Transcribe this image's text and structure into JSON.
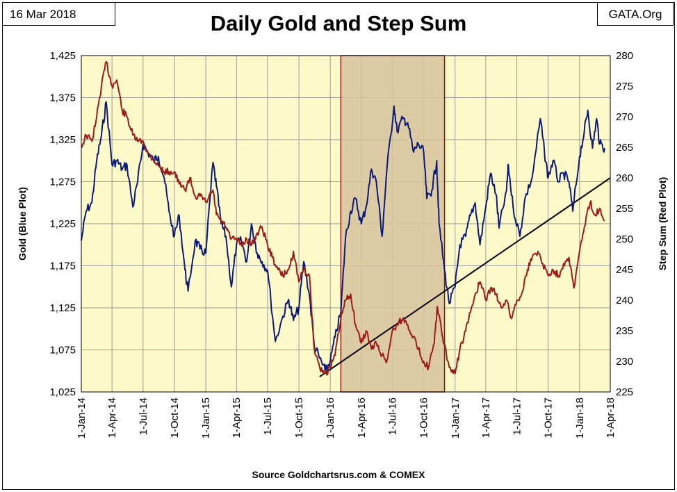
{
  "header": {
    "date": "16 Mar 2018",
    "site": "GATA.Org",
    "title": "Daily Gold and Step Sum"
  },
  "footer": {
    "source": "Source Goldchartsrus.com & COMEX"
  },
  "colors": {
    "plot_background": "#fdf9c8",
    "gold_series": "#0a1a7a",
    "step_sum_series": "#9b1a1a",
    "highlight_fill": "#d7c39c",
    "highlight_border": "#8b1a1a",
    "grid": "#9a9a9a",
    "trend_line": "#000000"
  },
  "chart_data": {
    "type": "line",
    "title": "Daily Gold and Step Sum",
    "xlabel": "",
    "ylabel_left": "Gold   (Blue Plot)",
    "ylabel_right": "Step Sum   (Red Plot)",
    "x_ticks": [
      "1-Jan-14",
      "1-Apr-14",
      "1-Jul-14",
      "1-Oct-14",
      "1-Jan-15",
      "1-Apr-15",
      "1-Jul-15",
      "1-Oct-15",
      "1-Jan-16",
      "1-Apr-16",
      "1-Jul-16",
      "1-Oct-16",
      "1-Jan-17",
      "1-Apr-17",
      "1-Jul-17",
      "1-Oct-17",
      "1-Jan-18",
      "1-Apr-18"
    ],
    "xlim": [
      "2014-01-01",
      "2018-04-01"
    ],
    "y_left_ticks": [
      "1,025",
      "1,075",
      "1,125",
      "1,175",
      "1,225",
      "1,275",
      "1,325",
      "1,375",
      "1,425"
    ],
    "y_left_range": [
      1025,
      1425
    ],
    "y_right_ticks": [
      "225",
      "230",
      "235",
      "240",
      "245",
      "250",
      "255",
      "260",
      "265",
      "270",
      "275",
      "280"
    ],
    "y_right_range": [
      225,
      280
    ],
    "grid": true,
    "shaded_region": {
      "start": "2016-02-01",
      "end": "2016-12-01"
    },
    "trend_line": {
      "start": {
        "x": "2015-12-01",
        "y_right": 227.5
      },
      "end": {
        "x": "2018-04-01",
        "y_right": 260
      }
    },
    "series": [
      {
        "name": "Gold",
        "axis": "left",
        "points": [
          [
            "2014-01-01",
            1205
          ],
          [
            "2014-01-15",
            1240
          ],
          [
            "2014-02-01",
            1250
          ],
          [
            "2014-02-15",
            1300
          ],
          [
            "2014-03-01",
            1330
          ],
          [
            "2014-03-15",
            1370
          ],
          [
            "2014-04-01",
            1295
          ],
          [
            "2014-04-15",
            1300
          ],
          [
            "2014-05-01",
            1290
          ],
          [
            "2014-05-15",
            1295
          ],
          [
            "2014-06-01",
            1245
          ],
          [
            "2014-06-15",
            1275
          ],
          [
            "2014-07-01",
            1320
          ],
          [
            "2014-07-15",
            1310
          ],
          [
            "2014-08-01",
            1300
          ],
          [
            "2014-08-15",
            1305
          ],
          [
            "2014-09-01",
            1280
          ],
          [
            "2014-09-15",
            1240
          ],
          [
            "2014-10-01",
            1210
          ],
          [
            "2014-10-15",
            1235
          ],
          [
            "2014-11-01",
            1170
          ],
          [
            "2014-11-10",
            1145
          ],
          [
            "2014-12-01",
            1205
          ],
          [
            "2014-12-15",
            1195
          ],
          [
            "2015-01-01",
            1190
          ],
          [
            "2015-01-22",
            1298
          ],
          [
            "2015-02-01",
            1270
          ],
          [
            "2015-02-15",
            1225
          ],
          [
            "2015-03-01",
            1210
          ],
          [
            "2015-03-17",
            1150
          ],
          [
            "2015-04-01",
            1200
          ],
          [
            "2015-04-15",
            1205
          ],
          [
            "2015-05-01",
            1180
          ],
          [
            "2015-05-15",
            1225
          ],
          [
            "2015-06-01",
            1190
          ],
          [
            "2015-06-15",
            1180
          ],
          [
            "2015-07-01",
            1170
          ],
          [
            "2015-07-24",
            1085
          ],
          [
            "2015-08-15",
            1115
          ],
          [
            "2015-09-01",
            1135
          ],
          [
            "2015-09-15",
            1110
          ],
          [
            "2015-10-01",
            1125
          ],
          [
            "2015-10-15",
            1180
          ],
          [
            "2015-11-01",
            1140
          ],
          [
            "2015-11-15",
            1080
          ],
          [
            "2015-12-01",
            1065
          ],
          [
            "2015-12-17",
            1050
          ],
          [
            "2016-01-01",
            1062
          ],
          [
            "2016-01-15",
            1090
          ],
          [
            "2016-02-01",
            1120
          ],
          [
            "2016-02-15",
            1210
          ],
          [
            "2016-03-01",
            1240
          ],
          [
            "2016-03-15",
            1255
          ],
          [
            "2016-04-01",
            1225
          ],
          [
            "2016-04-15",
            1245
          ],
          [
            "2016-05-01",
            1290
          ],
          [
            "2016-05-15",
            1275
          ],
          [
            "2016-06-01",
            1210
          ],
          [
            "2016-06-15",
            1290
          ],
          [
            "2016-07-06",
            1365
          ],
          [
            "2016-07-15",
            1335
          ],
          [
            "2016-08-01",
            1350
          ],
          [
            "2016-08-15",
            1345
          ],
          [
            "2016-09-01",
            1310
          ],
          [
            "2016-09-15",
            1320
          ],
          [
            "2016-10-01",
            1310
          ],
          [
            "2016-10-10",
            1255
          ],
          [
            "2016-10-25",
            1265
          ],
          [
            "2016-11-08",
            1300
          ],
          [
            "2016-11-15",
            1225
          ],
          [
            "2016-12-01",
            1170
          ],
          [
            "2016-12-15",
            1130
          ],
          [
            "2017-01-01",
            1150
          ],
          [
            "2017-01-15",
            1200
          ],
          [
            "2017-02-01",
            1210
          ],
          [
            "2017-02-15",
            1235
          ],
          [
            "2017-03-01",
            1250
          ],
          [
            "2017-03-15",
            1200
          ],
          [
            "2017-04-01",
            1245
          ],
          [
            "2017-04-15",
            1285
          ],
          [
            "2017-05-01",
            1260
          ],
          [
            "2017-05-10",
            1220
          ],
          [
            "2017-06-01",
            1265
          ],
          [
            "2017-06-06",
            1295
          ],
          [
            "2017-06-20",
            1245
          ],
          [
            "2017-07-10",
            1210
          ],
          [
            "2017-07-25",
            1255
          ],
          [
            "2017-08-15",
            1280
          ],
          [
            "2017-09-08",
            1350
          ],
          [
            "2017-09-20",
            1310
          ],
          [
            "2017-10-01",
            1280
          ],
          [
            "2017-10-15",
            1300
          ],
          [
            "2017-11-01",
            1275
          ],
          [
            "2017-11-15",
            1285
          ],
          [
            "2017-12-01",
            1275
          ],
          [
            "2017-12-12",
            1240
          ],
          [
            "2018-01-01",
            1305
          ],
          [
            "2018-01-15",
            1335
          ],
          [
            "2018-01-25",
            1360
          ],
          [
            "2018-02-08",
            1315
          ],
          [
            "2018-02-20",
            1350
          ],
          [
            "2018-03-01",
            1320
          ],
          [
            "2018-03-16",
            1315
          ]
        ]
      },
      {
        "name": "Step Sum",
        "axis": "right",
        "points": [
          [
            "2014-01-01",
            265
          ],
          [
            "2014-01-15",
            267
          ],
          [
            "2014-02-01",
            266
          ],
          [
            "2014-02-15",
            270
          ],
          [
            "2014-03-01",
            275
          ],
          [
            "2014-03-15",
            279
          ],
          [
            "2014-04-01",
            275
          ],
          [
            "2014-04-15",
            276
          ],
          [
            "2014-05-01",
            271
          ],
          [
            "2014-05-15",
            270
          ],
          [
            "2014-06-01",
            267
          ],
          [
            "2014-06-15",
            266
          ],
          [
            "2014-07-01",
            266
          ],
          [
            "2014-07-15",
            264
          ],
          [
            "2014-08-01",
            263
          ],
          [
            "2014-08-15",
            262
          ],
          [
            "2014-09-01",
            261
          ],
          [
            "2014-09-15",
            261
          ],
          [
            "2014-10-01",
            261
          ],
          [
            "2014-10-15",
            259
          ],
          [
            "2014-11-01",
            258
          ],
          [
            "2014-11-15",
            260
          ],
          [
            "2014-12-01",
            257
          ],
          [
            "2014-12-15",
            257
          ],
          [
            "2015-01-01",
            256
          ],
          [
            "2015-01-22",
            258
          ],
          [
            "2015-02-01",
            254
          ],
          [
            "2015-02-15",
            253
          ],
          [
            "2015-03-01",
            252
          ],
          [
            "2015-03-15",
            250
          ],
          [
            "2015-04-01",
            250
          ],
          [
            "2015-04-15",
            249
          ],
          [
            "2015-05-01",
            250
          ],
          [
            "2015-05-15",
            249
          ],
          [
            "2015-06-01",
            251
          ],
          [
            "2015-06-15",
            252
          ],
          [
            "2015-07-01",
            249
          ],
          [
            "2015-07-15",
            247
          ],
          [
            "2015-08-01",
            245
          ],
          [
            "2015-08-15",
            244
          ],
          [
            "2015-09-01",
            245
          ],
          [
            "2015-09-15",
            248
          ],
          [
            "2015-10-01",
            243
          ],
          [
            "2015-10-15",
            245
          ],
          [
            "2015-11-01",
            244
          ],
          [
            "2015-11-15",
            232
          ],
          [
            "2015-12-01",
            229
          ],
          [
            "2015-12-17",
            228
          ],
          [
            "2016-01-01",
            229
          ],
          [
            "2016-01-15",
            231
          ],
          [
            "2016-02-01",
            237
          ],
          [
            "2016-02-15",
            240
          ],
          [
            "2016-03-01",
            241
          ],
          [
            "2016-03-15",
            236
          ],
          [
            "2016-04-01",
            233
          ],
          [
            "2016-04-15",
            235
          ],
          [
            "2016-05-01",
            232
          ],
          [
            "2016-05-15",
            233
          ],
          [
            "2016-06-01",
            231
          ],
          [
            "2016-06-15",
            230
          ],
          [
            "2016-07-01",
            235
          ],
          [
            "2016-07-15",
            236
          ],
          [
            "2016-08-01",
            237
          ],
          [
            "2016-08-15",
            236
          ],
          [
            "2016-09-01",
            234
          ],
          [
            "2016-09-15",
            232
          ],
          [
            "2016-10-01",
            230
          ],
          [
            "2016-10-15",
            229
          ],
          [
            "2016-11-01",
            233
          ],
          [
            "2016-11-10",
            239
          ],
          [
            "2016-11-25",
            234
          ],
          [
            "2016-12-15",
            229
          ],
          [
            "2017-01-01",
            228
          ],
          [
            "2017-01-15",
            232
          ],
          [
            "2017-02-01",
            235
          ],
          [
            "2017-02-15",
            238
          ],
          [
            "2017-03-01",
            241
          ],
          [
            "2017-03-15",
            243
          ],
          [
            "2017-04-01",
            240
          ],
          [
            "2017-04-15",
            242
          ],
          [
            "2017-05-01",
            241
          ],
          [
            "2017-05-15",
            239
          ],
          [
            "2017-06-01",
            240
          ],
          [
            "2017-06-15",
            237
          ],
          [
            "2017-07-01",
            240
          ],
          [
            "2017-07-15",
            241
          ],
          [
            "2017-08-01",
            245
          ],
          [
            "2017-08-15",
            247
          ],
          [
            "2017-09-01",
            248
          ],
          [
            "2017-09-15",
            246
          ],
          [
            "2017-10-01",
            244
          ],
          [
            "2017-10-15",
            245
          ],
          [
            "2017-11-01",
            244
          ],
          [
            "2017-11-15",
            246
          ],
          [
            "2017-12-01",
            247
          ],
          [
            "2017-12-15",
            242
          ],
          [
            "2018-01-01",
            248
          ],
          [
            "2018-01-15",
            252
          ],
          [
            "2018-02-01",
            256
          ],
          [
            "2018-02-15",
            254
          ],
          [
            "2018-03-01",
            255
          ],
          [
            "2018-03-16",
            253
          ]
        ]
      }
    ]
  }
}
